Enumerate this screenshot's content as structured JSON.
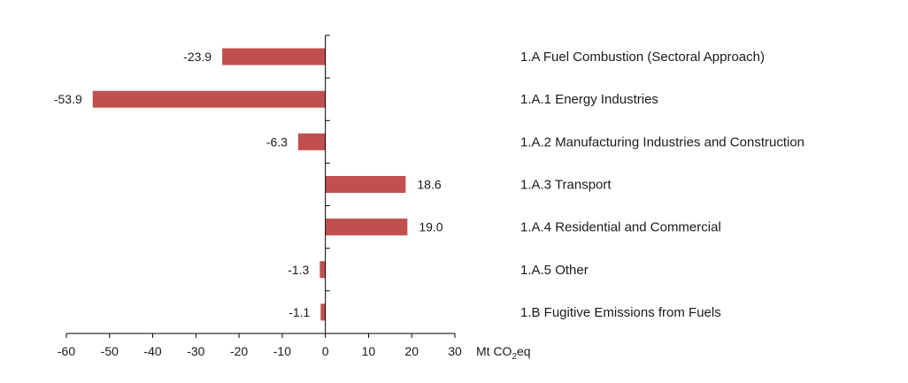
{
  "chart_data": {
    "type": "bar",
    "orientation": "horizontal",
    "categories": [
      "1.A Fuel Combustion (Sectoral Approach)",
      "1.A.1  Energy Industries",
      "1.A.2  Manufacturing Industries and Construction",
      "1.A.3  Transport",
      "1.A.4  Residential and Commercial",
      "1.A.5  Other",
      "1.B Fugitive Emissions from Fuels"
    ],
    "values": [
      -23.9,
      -53.9,
      -6.3,
      18.6,
      19.0,
      -1.3,
      -1.1
    ],
    "value_labels": [
      "-23.9",
      "-53.9",
      "-6.3",
      "18.6",
      "19.0",
      "-1.3",
      "-1.1"
    ],
    "xlim": [
      -60,
      30
    ],
    "xticks": [
      -60,
      -50,
      -40,
      -30,
      -20,
      -10,
      0,
      10,
      20,
      30
    ],
    "xlabel": "Mt CO₂eq",
    "unit": {
      "prefix": "Mt CO",
      "subscript": "2",
      "suffix": "eq"
    },
    "bar_color": "#c0504d",
    "grid": false,
    "legend": "none"
  }
}
